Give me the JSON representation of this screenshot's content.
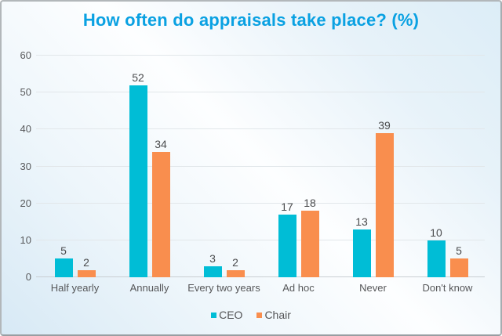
{
  "title": "How often do appraisals take place? (%)",
  "colors": {
    "title": "#0aa1e2",
    "ceo": "#00bdd6",
    "chair": "#f98e4e",
    "grid": "#e2e7ea",
    "baseline": "#c9ced2",
    "text": "#4a4b4d"
  },
  "chart_data": {
    "type": "bar",
    "title": "How often do appraisals take place? (%)",
    "categories": [
      "Half yearly",
      "Annually",
      "Every two years",
      "Ad hoc",
      "Never",
      "Don't know"
    ],
    "series": [
      {
        "name": "CEO",
        "color": "#00bdd6",
        "values": [
          5,
          52,
          3,
          17,
          13,
          10
        ]
      },
      {
        "name": "Chair",
        "color": "#f98e4e",
        "values": [
          2,
          34,
          2,
          18,
          39,
          5
        ]
      }
    ],
    "xlabel": "",
    "ylabel": "",
    "ylim": [
      0,
      60
    ],
    "yticks": [
      0,
      10,
      20,
      30,
      40,
      50,
      60
    ],
    "grid": true,
    "value_labels": true,
    "legend_position": "bottom"
  }
}
